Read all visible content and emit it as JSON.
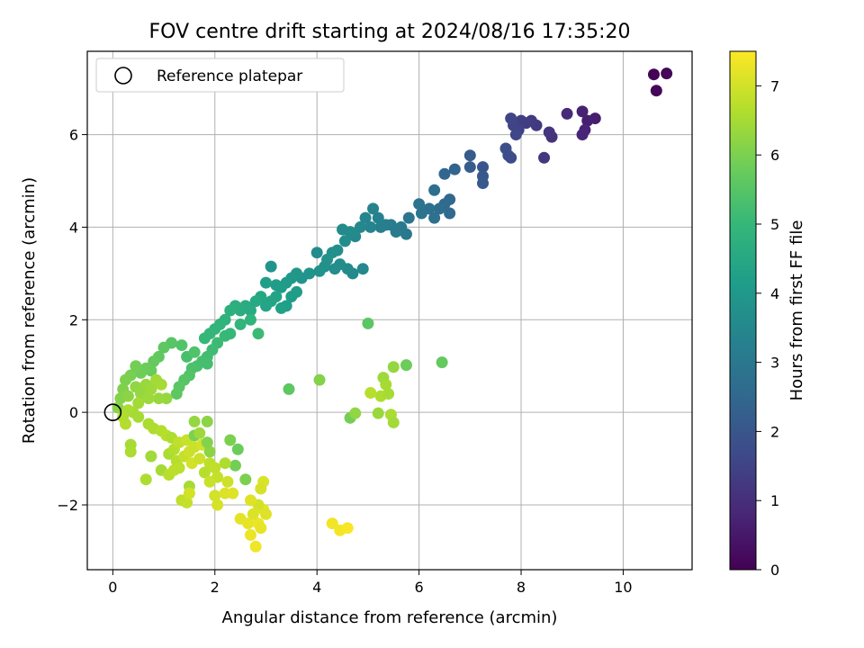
{
  "chart_data": {
    "type": "scatter",
    "title": "FOV centre drift starting at 2024/08/16 17:35:20",
    "xlabel": "Angular distance from reference (arcmin)",
    "ylabel": "Rotation from reference (arcmin)",
    "xlim": [
      -0.5,
      11.35
    ],
    "ylim": [
      -3.4,
      7.8
    ],
    "xticks": [
      0,
      2,
      4,
      6,
      8,
      10
    ],
    "xtick_labels": [
      "0",
      "2",
      "4",
      "6",
      "8",
      "10"
    ],
    "yticks": [
      -2,
      0,
      2,
      4,
      6
    ],
    "ytick_labels": [
      "−2",
      "0",
      "2",
      "4",
      "6"
    ],
    "grid": true,
    "legend": {
      "placement": "top-left",
      "label": "Reference platepar"
    },
    "reference_point": [
      0,
      0
    ],
    "colorbar": {
      "label": "Hours from first FF file",
      "range": [
        0,
        7.5
      ],
      "ticks": [
        0,
        1,
        2,
        3,
        4,
        5,
        6,
        7
      ],
      "tick_labels": [
        "0",
        "1",
        "2",
        "3",
        "4",
        "5",
        "6",
        "7"
      ],
      "colormap": "viridis"
    },
    "points": [
      [
        10.6,
        7.3,
        0.05
      ],
      [
        10.85,
        7.32,
        0.1
      ],
      [
        10.65,
        6.95,
        0.15
      ],
      [
        9.45,
        6.35,
        0.6
      ],
      [
        9.3,
        6.3,
        0.65
      ],
      [
        9.2,
        6.5,
        0.7
      ],
      [
        9.25,
        6.1,
        0.75
      ],
      [
        9.2,
        6.0,
        0.8
      ],
      [
        8.9,
        6.45,
        0.9
      ],
      [
        8.6,
        5.95,
        1.1
      ],
      [
        8.55,
        6.05,
        1.15
      ],
      [
        8.45,
        5.5,
        1.2
      ],
      [
        8.3,
        6.2,
        1.25
      ],
      [
        8.2,
        6.3,
        1.3
      ],
      [
        8.1,
        6.25,
        1.35
      ],
      [
        8.0,
        6.3,
        1.4
      ],
      [
        7.95,
        6.1,
        1.45
      ],
      [
        7.85,
        6.2,
        1.5
      ],
      [
        7.8,
        6.35,
        1.55
      ],
      [
        7.9,
        6.0,
        1.6
      ],
      [
        7.8,
        5.5,
        1.7
      ],
      [
        7.75,
        5.55,
        1.75
      ],
      [
        7.7,
        5.7,
        1.8
      ],
      [
        7.25,
        5.3,
        2.0
      ],
      [
        7.25,
        5.1,
        2.05
      ],
      [
        7.25,
        4.95,
        2.1
      ],
      [
        7.0,
        5.55,
        2.15
      ],
      [
        7.0,
        5.3,
        2.2
      ],
      [
        6.7,
        5.25,
        2.4
      ],
      [
        6.5,
        5.15,
        2.45
      ],
      [
        6.6,
        4.6,
        2.5
      ],
      [
        6.6,
        4.3,
        2.55
      ],
      [
        6.5,
        4.5,
        2.6
      ],
      [
        6.4,
        4.4,
        2.65
      ],
      [
        6.3,
        4.8,
        2.7
      ],
      [
        6.3,
        4.2,
        2.75
      ],
      [
        6.2,
        4.4,
        2.8
      ],
      [
        6.05,
        4.3,
        2.85
      ],
      [
        6.0,
        4.5,
        2.9
      ],
      [
        5.8,
        4.2,
        2.95
      ],
      [
        5.75,
        3.85,
        3.0
      ],
      [
        5.65,
        4.0,
        3.05
      ],
      [
        5.55,
        3.9,
        3.1
      ],
      [
        5.45,
        4.05,
        3.15
      ],
      [
        5.35,
        4.05,
        3.2
      ],
      [
        5.25,
        4.0,
        3.25
      ],
      [
        5.2,
        4.2,
        3.3
      ],
      [
        5.1,
        4.4,
        3.35
      ],
      [
        5.05,
        4.0,
        3.4
      ],
      [
        4.95,
        4.2,
        3.45
      ],
      [
        4.85,
        4.0,
        3.5
      ],
      [
        4.75,
        3.8,
        3.55
      ],
      [
        4.65,
        3.9,
        3.6
      ],
      [
        4.55,
        3.7,
        3.65
      ],
      [
        4.4,
        3.5,
        3.7
      ],
      [
        4.3,
        3.45,
        3.75
      ],
      [
        4.2,
        3.3,
        3.8
      ],
      [
        4.5,
        3.95,
        3.6
      ],
      [
        4.9,
        3.1,
        3.5
      ],
      [
        4.7,
        3.0,
        3.55
      ],
      [
        4.6,
        3.1,
        3.6
      ],
      [
        4.45,
        3.2,
        3.65
      ],
      [
        4.35,
        3.1,
        3.7
      ],
      [
        4.15,
        3.15,
        3.75
      ],
      [
        4.05,
        3.05,
        3.8
      ],
      [
        4.0,
        3.45,
        3.6
      ],
      [
        3.85,
        3.0,
        3.85
      ],
      [
        3.7,
        2.9,
        3.9
      ],
      [
        3.6,
        3.0,
        3.95
      ],
      [
        3.5,
        2.9,
        4.0
      ],
      [
        3.4,
        2.8,
        4.05
      ],
      [
        3.3,
        2.7,
        4.1
      ],
      [
        3.2,
        2.75,
        4.15
      ],
      [
        3.1,
        3.15,
        3.9
      ],
      [
        3.0,
        2.8,
        4.2
      ],
      [
        3.6,
        2.6,
        4.1
      ],
      [
        3.5,
        2.5,
        4.15
      ],
      [
        3.4,
        2.3,
        4.2
      ],
      [
        3.3,
        2.25,
        4.25
      ],
      [
        3.2,
        2.5,
        4.3
      ],
      [
        3.1,
        2.4,
        4.35
      ],
      [
        3.0,
        2.3,
        4.4
      ],
      [
        2.9,
        2.5,
        4.45
      ],
      [
        2.8,
        2.4,
        4.5
      ],
      [
        2.7,
        2.2,
        4.55
      ],
      [
        2.6,
        2.3,
        4.6
      ],
      [
        2.5,
        2.2,
        4.65
      ],
      [
        2.4,
        2.3,
        4.7
      ],
      [
        2.3,
        2.2,
        4.75
      ],
      [
        2.2,
        2.0,
        4.8
      ],
      [
        2.1,
        1.9,
        4.85
      ],
      [
        2.0,
        1.8,
        4.9
      ],
      [
        1.9,
        1.7,
        4.95
      ],
      [
        1.8,
        1.6,
        5.0
      ],
      [
        2.3,
        1.7,
        5.0
      ],
      [
        2.5,
        1.9,
        4.9
      ],
      [
        2.7,
        2.0,
        4.85
      ],
      [
        2.85,
        1.7,
        5.1
      ],
      [
        2.2,
        1.65,
        5.05
      ],
      [
        2.05,
        1.5,
        5.1
      ],
      [
        1.95,
        1.35,
        5.15
      ],
      [
        1.85,
        1.2,
        5.2
      ],
      [
        1.75,
        1.1,
        5.25
      ],
      [
        1.65,
        1.0,
        5.3
      ],
      [
        1.55,
        0.95,
        5.35
      ],
      [
        1.45,
        1.2,
        5.3
      ],
      [
        1.85,
        1.05,
        5.25
      ],
      [
        1.6,
        1.3,
        5.4
      ],
      [
        1.5,
        0.8,
        5.45
      ],
      [
        1.4,
        0.7,
        5.5
      ],
      [
        1.3,
        0.55,
        5.55
      ],
      [
        1.25,
        0.4,
        5.6
      ],
      [
        1.35,
        1.45,
        5.45
      ],
      [
        1.15,
        1.5,
        5.5
      ],
      [
        1.0,
        1.4,
        5.6
      ],
      [
        0.9,
        1.2,
        5.65
      ],
      [
        0.8,
        1.1,
        5.7
      ],
      [
        0.75,
        0.9,
        5.75
      ],
      [
        0.65,
        0.95,
        5.8
      ],
      [
        0.55,
        0.85,
        5.85
      ],
      [
        0.45,
        1.0,
        5.9
      ],
      [
        0.35,
        0.8,
        5.95
      ],
      [
        0.25,
        0.7,
        6.0
      ],
      [
        0.2,
        0.5,
        6.05
      ],
      [
        0.15,
        0.3,
        6.1
      ],
      [
        0.1,
        0.1,
        6.15
      ],
      [
        0.3,
        0.35,
        6.2
      ],
      [
        0.45,
        0.55,
        6.25
      ],
      [
        0.55,
        0.4,
        6.3
      ],
      [
        0.65,
        0.6,
        6.35
      ],
      [
        0.75,
        0.5,
        6.4
      ],
      [
        0.85,
        0.7,
        6.45
      ],
      [
        0.95,
        0.6,
        6.5
      ],
      [
        1.05,
        0.3,
        6.3
      ],
      [
        0.9,
        0.3,
        6.35
      ],
      [
        0.7,
        0.3,
        6.4
      ],
      [
        0.5,
        0.2,
        6.45
      ],
      [
        0.4,
        0.0,
        6.5
      ],
      [
        0.3,
        0.05,
        6.55
      ],
      [
        0.2,
        -0.1,
        6.6
      ],
      [
        0.25,
        -0.25,
        6.65
      ],
      [
        0.5,
        -0.1,
        6.5
      ],
      [
        0.7,
        -0.25,
        6.55
      ],
      [
        0.8,
        -0.35,
        6.6
      ],
      [
        0.95,
        -0.4,
        6.65
      ],
      [
        1.05,
        -0.5,
        6.7
      ],
      [
        0.35,
        -0.7,
        6.5
      ],
      [
        0.35,
        -0.85,
        6.55
      ],
      [
        0.65,
        -1.45,
        6.6
      ],
      [
        0.75,
        -0.95,
        6.45
      ],
      [
        0.95,
        -1.25,
        6.5
      ],
      [
        1.1,
        -0.9,
        6.55
      ],
      [
        1.15,
        -0.55,
        6.6
      ],
      [
        1.2,
        -0.8,
        6.65
      ],
      [
        1.25,
        -1.05,
        6.7
      ],
      [
        1.3,
        -1.2,
        6.75
      ],
      [
        1.3,
        -0.65,
        6.8
      ],
      [
        1.4,
        -0.95,
        6.85
      ],
      [
        1.45,
        -0.6,
        6.9
      ],
      [
        1.5,
        -0.85,
        6.95
      ],
      [
        1.55,
        -1.1,
        7.0
      ],
      [
        1.1,
        -1.35,
        6.7
      ],
      [
        1.2,
        -1.25,
        6.75
      ],
      [
        1.35,
        -1.9,
        6.8
      ],
      [
        1.45,
        -1.95,
        6.85
      ],
      [
        1.5,
        -1.6,
        6.5
      ],
      [
        1.6,
        -0.75,
        6.9
      ],
      [
        1.7,
        -1.0,
        6.95
      ],
      [
        1.75,
        -0.7,
        7.0
      ],
      [
        1.8,
        -1.3,
        6.7
      ],
      [
        1.9,
        -1.1,
        6.75
      ],
      [
        2.0,
        -1.2,
        6.8
      ],
      [
        2.05,
        -1.4,
        6.85
      ],
      [
        1.9,
        -1.5,
        6.9
      ],
      [
        2.0,
        -1.8,
        7.0
      ],
      [
        2.05,
        -2.0,
        7.05
      ],
      [
        1.5,
        -1.75,
        7.0
      ],
      [
        1.9,
        -0.85,
        6.2
      ],
      [
        1.85,
        -0.65,
        6.1
      ],
      [
        1.6,
        -0.5,
        6.0
      ],
      [
        1.6,
        -0.2,
        6.3
      ],
      [
        1.85,
        -0.2,
        6.2
      ],
      [
        1.7,
        -0.45,
        6.4
      ],
      [
        2.3,
        -0.6,
        6.0
      ],
      [
        2.45,
        -0.8,
        5.8
      ],
      [
        2.4,
        -1.15,
        5.9
      ],
      [
        2.6,
        -1.45,
        6.0
      ],
      [
        2.2,
        -1.1,
        6.6
      ],
      [
        2.25,
        -1.5,
        6.95
      ],
      [
        2.2,
        -1.75,
        7.1
      ],
      [
        2.35,
        -1.75,
        7.15
      ],
      [
        2.5,
        -2.3,
        7.2
      ],
      [
        2.65,
        -2.4,
        7.25
      ],
      [
        2.7,
        -2.65,
        7.3
      ],
      [
        2.8,
        -2.9,
        7.35
      ],
      [
        2.85,
        -2.4,
        7.3
      ],
      [
        2.9,
        -2.5,
        7.25
      ],
      [
        2.95,
        -2.1,
        7.2
      ],
      [
        3.0,
        -2.2,
        7.15
      ],
      [
        2.95,
        -1.5,
        7.1
      ],
      [
        2.9,
        -1.65,
        7.05
      ],
      [
        2.85,
        -2.0,
        7.0
      ],
      [
        2.75,
        -2.2,
        7.1
      ],
      [
        2.7,
        -1.9,
        7.15
      ],
      [
        4.3,
        -2.4,
        7.35
      ],
      [
        4.45,
        -2.55,
        7.4
      ],
      [
        4.6,
        -2.5,
        7.45
      ],
      [
        3.45,
        0.5,
        5.6
      ],
      [
        4.05,
        0.7,
        6.1
      ],
      [
        5.0,
        1.92,
        5.55
      ],
      [
        6.45,
        1.08,
        5.7
      ],
      [
        5.75,
        1.02,
        5.8
      ],
      [
        5.5,
        0.98,
        6.3
      ],
      [
        5.3,
        0.75,
        6.4
      ],
      [
        5.35,
        0.6,
        6.5
      ],
      [
        5.25,
        0.35,
        6.6
      ],
      [
        5.4,
        0.4,
        6.5
      ],
      [
        5.05,
        0.42,
        6.7
      ],
      [
        5.45,
        -0.05,
        6.55
      ],
      [
        5.5,
        -0.22,
        6.45
      ],
      [
        4.65,
        -0.12,
        5.9
      ],
      [
        4.75,
        -0.02,
        6.25
      ],
      [
        5.2,
        -0.02,
        6.35
      ]
    ]
  }
}
